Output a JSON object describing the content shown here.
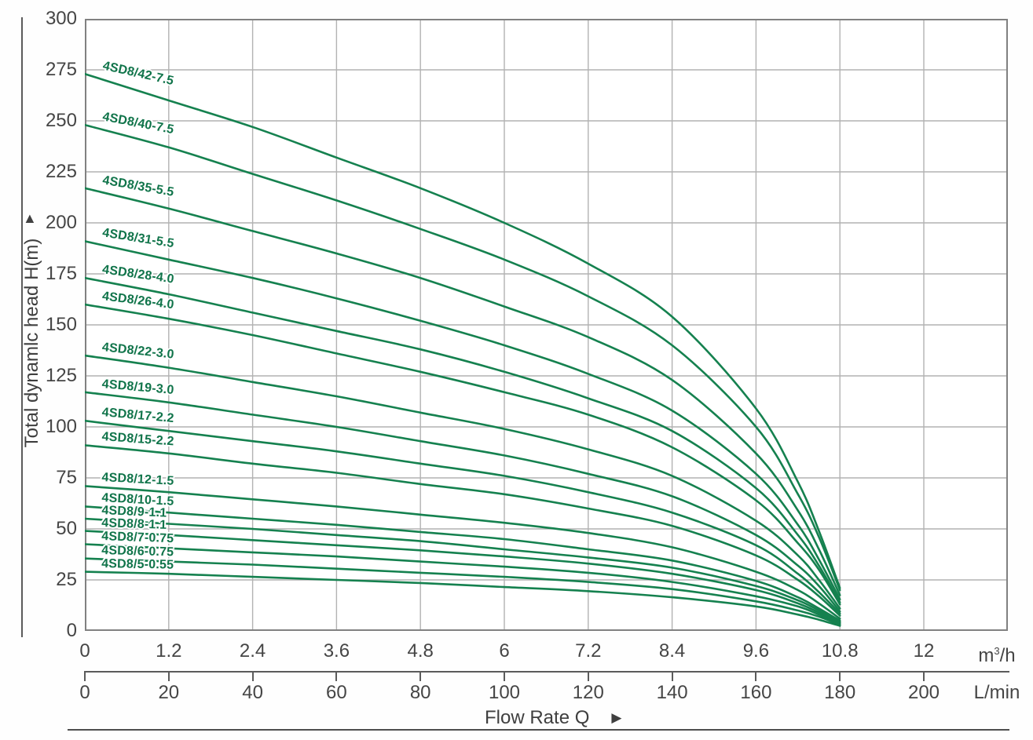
{
  "colors": {
    "curve": "#15814f",
    "curve_label": "#10744a",
    "grid": "#b2b2b2",
    "frame": "#818181",
    "axis": "#5b5b5b",
    "text": "#454545"
  },
  "y_axis": {
    "arrow": "▲",
    "title": "Total dynamlc head H(m)",
    "ticks": [
      "300",
      "275",
      "250",
      "225",
      "200",
      "175",
      "150",
      "125",
      "100",
      "75",
      "50",
      "25",
      "0"
    ]
  },
  "x_axis_m3h": {
    "ticks": [
      "0",
      "1.2",
      "2.4",
      "3.6",
      "4.8",
      "6",
      "7.2",
      "8.4",
      "9.6",
      "10.8",
      "12"
    ],
    "unit": {
      "base": "m",
      "sup": "3",
      "rest": "/h"
    }
  },
  "x_axis_lmin": {
    "ticks": [
      "0",
      "20",
      "40",
      "60",
      "80",
      "100",
      "120",
      "140",
      "160",
      "180",
      "200"
    ],
    "unit": "L/min"
  },
  "x_label": {
    "text": "Flow Rate Q",
    "arrow": "▶"
  },
  "chart_data": {
    "type": "line",
    "xlabel": "Flow Rate Q",
    "ylabel": "Total dynamlc head H(m)",
    "x_unit_primary": "m3/h",
    "x_unit_secondary": "L/min",
    "xlim": [
      0,
      13.2
    ],
    "ylim": [
      0,
      300
    ],
    "grid": true,
    "x_ticks_m3h": [
      0,
      1.2,
      2.4,
      3.6,
      4.8,
      6,
      7.2,
      8.4,
      9.6,
      10.8,
      12
    ],
    "x_ticks_lmin": [
      0,
      20,
      40,
      60,
      80,
      100,
      120,
      140,
      160,
      180,
      200
    ],
    "x": [
      0,
      1.2,
      2.4,
      3.6,
      4.8,
      6,
      7.2,
      8.4,
      9.6,
      10.2,
      10.5,
      10.8
    ],
    "series": [
      {
        "name": "4SD8/42-7.5",
        "values": [
          273,
          260,
          247,
          232,
          217,
          200,
          180,
          154,
          109,
          73,
          49,
          21
        ]
      },
      {
        "name": "4SD8/40-7.5",
        "values": [
          248,
          237,
          224,
          211,
          197,
          182,
          164,
          140,
          100,
          67,
          46,
          20
        ]
      },
      {
        "name": "4SD8/35-5.5",
        "values": [
          217,
          207,
          196,
          185,
          173,
          159,
          144,
          123,
          87,
          59,
          40,
          17.5
        ]
      },
      {
        "name": "4SD8/31-5.5",
        "values": [
          191,
          182,
          173,
          163,
          152,
          140,
          126,
          108,
          77,
          52,
          35,
          15.5
        ]
      },
      {
        "name": "4SD8/28-4.0",
        "values": [
          173,
          165,
          156,
          147,
          138,
          127,
          114,
          98,
          70,
          47,
          32,
          14
        ]
      },
      {
        "name": "4SD8/26-4.0",
        "values": [
          160,
          153,
          145,
          136,
          127,
          117,
          106,
          90,
          64,
          43,
          30,
          13
        ]
      },
      {
        "name": "4SD8/22-3.0",
        "values": [
          135,
          129,
          122,
          115,
          107,
          99,
          89,
          76,
          54,
          37,
          25,
          11
        ]
      },
      {
        "name": "4SD8/19-3.0",
        "values": [
          117,
          112,
          106,
          100,
          93,
          86,
          77,
          66,
          47,
          32,
          22,
          9.5
        ]
      },
      {
        "name": "4SD8/17-2.2",
        "values": [
          103,
          98,
          93,
          88,
          82,
          76,
          68,
          58,
          42,
          28,
          19,
          8.5
        ]
      },
      {
        "name": "4SD8/15-2.2",
        "values": [
          91,
          87,
          82,
          77.5,
          72,
          67,
          60,
          51.5,
          37,
          25,
          17,
          7.5
        ]
      },
      {
        "name": "4SD8/12-1.5",
        "values": [
          71,
          68,
          64.5,
          61,
          57,
          53,
          48,
          41,
          29,
          20,
          13.5,
          6
        ]
      },
      {
        "name": "4SD8/10-1.5",
        "values": [
          61,
          58,
          55,
          52,
          48.5,
          45,
          40,
          34.5,
          24.5,
          16.5,
          11,
          5
        ]
      },
      {
        "name": "4SD8/9-1.1",
        "values": [
          55,
          52.5,
          50,
          47,
          44,
          40,
          36,
          31,
          22,
          15,
          10,
          4.5
        ]
      },
      {
        "name": "4SD8/8-1.1",
        "values": [
          49,
          47,
          44.5,
          42,
          39.5,
          36.5,
          33,
          28,
          20,
          13.5,
          9,
          4
        ]
      },
      {
        "name": "4SD8/7-0.75",
        "values": [
          42.5,
          40.5,
          38.5,
          36.5,
          34,
          31.5,
          28.5,
          24,
          17,
          12,
          8,
          3.5
        ]
      },
      {
        "name": "4SD8/6-0.75",
        "values": [
          35.5,
          34,
          32.5,
          30.5,
          28.5,
          26.5,
          24,
          20.5,
          14.5,
          10,
          7,
          3
        ]
      },
      {
        "name": "4SD8/5-0.55",
        "values": [
          29,
          28,
          26.5,
          25,
          23.5,
          21.5,
          19.5,
          16.5,
          12,
          8,
          5.5,
          2.5
        ]
      }
    ]
  }
}
